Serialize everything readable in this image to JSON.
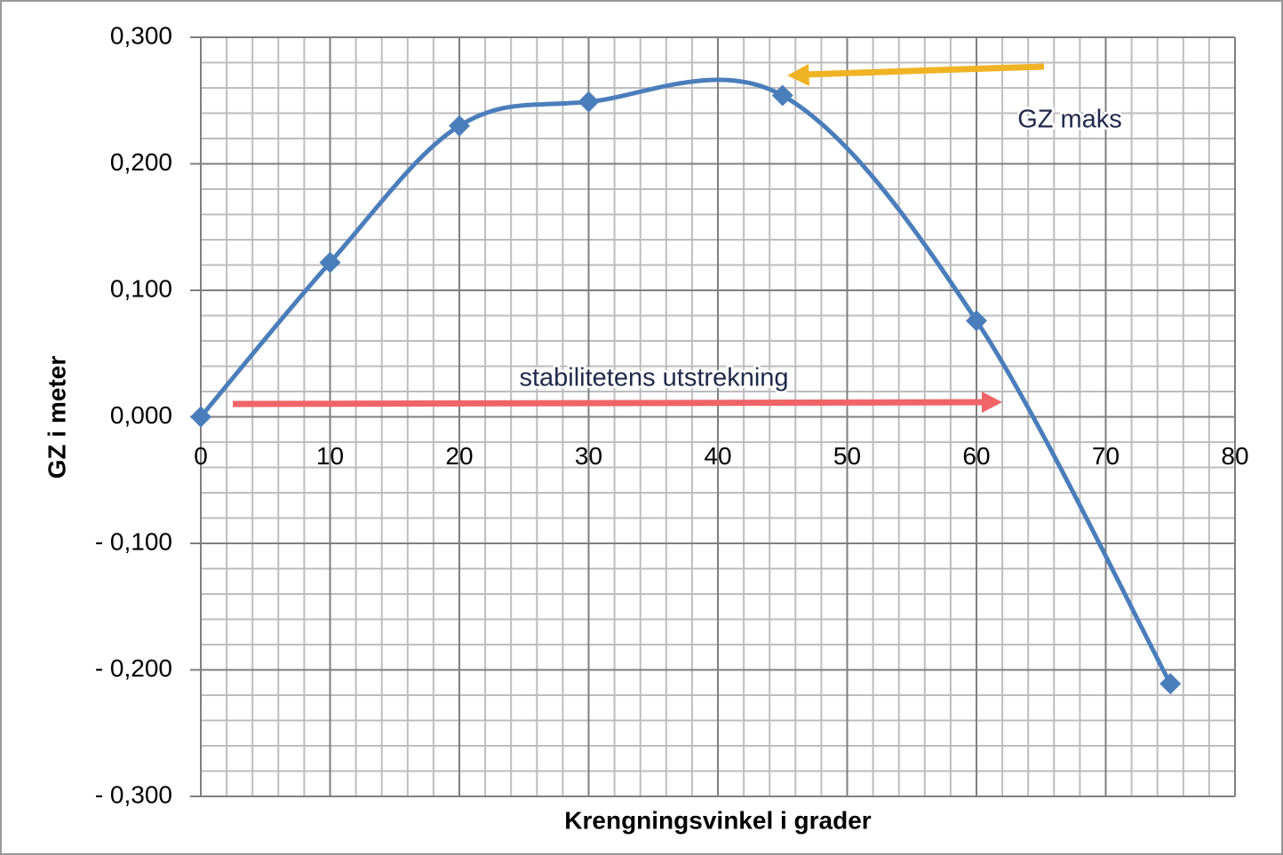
{
  "chart_data": {
    "type": "line",
    "x_label": "Krengningsvinkel i grader",
    "y_label": "GZ i meter",
    "x": [
      0,
      10,
      20,
      30,
      45,
      60,
      75
    ],
    "series": [
      {
        "color": "#4a7ebb",
        "values": [
          0,
          0.122,
          0.23,
          0.249,
          0.254,
          0.076,
          -0.211
        ]
      }
    ],
    "smooth": true,
    "xlim": [
      0,
      80
    ],
    "xticks": [
      0,
      10,
      20,
      30,
      40,
      50,
      60,
      70,
      80
    ],
    "ylim": [
      -0.3,
      0.3
    ],
    "yticks": [
      {
        "value": -0.3,
        "label": "- 0,300"
      },
      {
        "value": -0.2,
        "label": "- 0,200"
      },
      {
        "value": -0.1,
        "label": "- 0,100"
      },
      {
        "value": 0,
        "label": "0,000"
      },
      {
        "value": 0.1,
        "label": "0,100"
      },
      {
        "value": 0.2,
        "label": "0,200"
      },
      {
        "value": 0.3,
        "label": "0,300"
      }
    ],
    "grid": true,
    "minor_grid": {
      "x": 2,
      "y": 0.02
    },
    "annotations": [
      "GZ maks",
      "stabilitetens utstrekning"
    ]
  }
}
